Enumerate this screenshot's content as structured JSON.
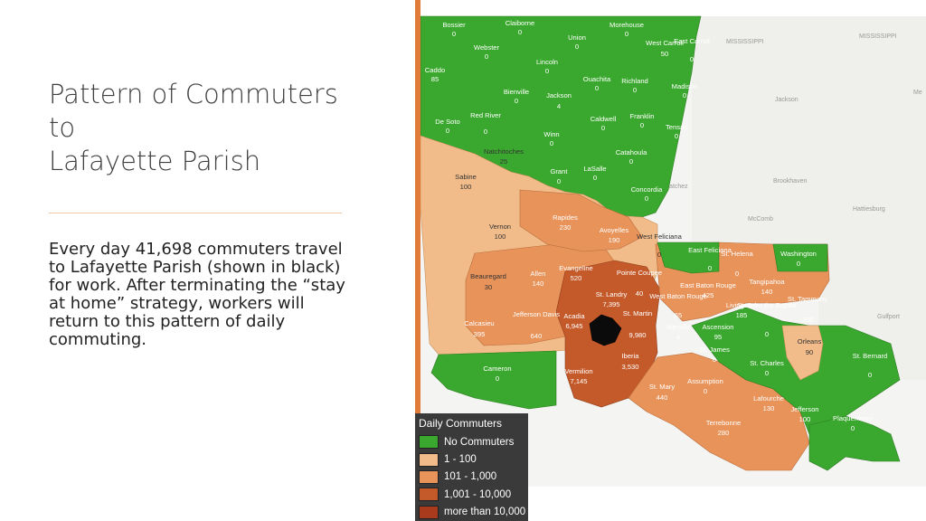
{
  "slide": {
    "title_lines": [
      "Pattern of Commuters",
      "to",
      "Lafayette Parish"
    ],
    "body": "Every day 41,698 commuters travel to Lafayette Parish (shown in black) for work.  After terminating the  “stay at home” strategy, workers will return to this pattern of daily commuting."
  },
  "legend": {
    "title": "Daily Commuters",
    "items": [
      {
        "label": "No Commuters",
        "color": "#3aa82e"
      },
      {
        "label": "1 - 100",
        "color": "#f2bc8a"
      },
      {
        "label": "101 - 1,000",
        "color": "#e8935a"
      },
      {
        "label": "1,001 - 10,000",
        "color": "#c45a2a"
      },
      {
        "label": "more than 10,000",
        "color": "#a93a1c"
      }
    ]
  },
  "map_labels": {
    "states": [
      "MISSISSIPPI",
      "MISSISSIPPI"
    ],
    "cities": [
      "Jackson",
      "Brookhaven",
      "McComb",
      "Hattiesburg",
      "Gulfport",
      "Natchez",
      "Me"
    ]
  },
  "parishes": [
    {
      "name": "Bossier",
      "value": "0"
    },
    {
      "name": "Claiborne",
      "value": "0"
    },
    {
      "name": "Morehouse",
      "value": "0"
    },
    {
      "name": "West Carroll",
      "value": "50"
    },
    {
      "name": "East Carroll",
      "value": "0"
    },
    {
      "name": "Union",
      "value": "0"
    },
    {
      "name": "Webster",
      "value": "0"
    },
    {
      "name": "Caddo",
      "value": "85"
    },
    {
      "name": "Lincoln",
      "value": "0"
    },
    {
      "name": "Ouachita",
      "value": "0"
    },
    {
      "name": "Richland",
      "value": "0"
    },
    {
      "name": "Madison",
      "value": "0"
    },
    {
      "name": "Bienville",
      "value": "0"
    },
    {
      "name": "Jackson",
      "value": "4"
    },
    {
      "name": "Red River",
      "value": "0"
    },
    {
      "name": "De Soto",
      "value": "0"
    },
    {
      "name": "Caldwell",
      "value": "0"
    },
    {
      "name": "Franklin",
      "value": "0"
    },
    {
      "name": "Tensas",
      "value": "0"
    },
    {
      "name": "Winn",
      "value": "0"
    },
    {
      "name": "Natchitoches",
      "value": "25"
    },
    {
      "name": "Catahoula",
      "value": "0"
    },
    {
      "name": "Sabine",
      "value": "100"
    },
    {
      "name": "Grant",
      "value": "0"
    },
    {
      "name": "LaSalle",
      "value": "0"
    },
    {
      "name": "Concordia",
      "value": "0"
    },
    {
      "name": "Rapides",
      "value": "230"
    },
    {
      "name": "Vernon",
      "value": "100"
    },
    {
      "name": "Avoyelles",
      "value": "190"
    },
    {
      "name": "West Feliciana",
      "value": "0"
    },
    {
      "name": "East Feliciana",
      "value": "0"
    },
    {
      "name": "St. Helena",
      "value": "0"
    },
    {
      "name": "Washington",
      "value": "0"
    },
    {
      "name": "Beauregard",
      "value": "30"
    },
    {
      "name": "Allen",
      "value": "140"
    },
    {
      "name": "Evangeline",
      "value": "520"
    },
    {
      "name": "Pointe Coupee",
      "value": "40"
    },
    {
      "name": "St. Landry",
      "value": "7,395"
    },
    {
      "name": "East Baton Rouge",
      "value": "425"
    },
    {
      "name": "Tangipahoa",
      "value": "140"
    },
    {
      "name": "West Baton Rouge",
      "value": "65"
    },
    {
      "name": "Livingston",
      "value": "185"
    },
    {
      "name": "St. John the Baptist",
      "value": "0"
    },
    {
      "name": "St. Tammany",
      "value": "205"
    },
    {
      "name": "Calcasieu",
      "value": "395"
    },
    {
      "name": "Jefferson Davis",
      "value": "640"
    },
    {
      "name": "Acadia",
      "value": "6,945"
    },
    {
      "name": "St. Martin",
      "value": "9,980"
    },
    {
      "name": "Iberville",
      "value": "4"
    },
    {
      "name": "Ascension",
      "value": "95"
    },
    {
      "name": "Orleans",
      "value": "90"
    },
    {
      "name": "St. James",
      "value": "0"
    },
    {
      "name": "St. Bernard",
      "value": "0"
    },
    {
      "name": "Cameron",
      "value": "0"
    },
    {
      "name": "Vermilion",
      "value": "7,145"
    },
    {
      "name": "Iberia",
      "value": "3,530"
    },
    {
      "name": "Assumption",
      "value": "0"
    },
    {
      "name": "St. Charles",
      "value": "0"
    },
    {
      "name": "St. Mary",
      "value": "440"
    },
    {
      "name": "Lafourche",
      "value": "130"
    },
    {
      "name": "Jefferson",
      "value": "100"
    },
    {
      "name": "Terrebonne",
      "value": "280"
    },
    {
      "name": "Plaquemines",
      "value": "0"
    }
  ]
}
